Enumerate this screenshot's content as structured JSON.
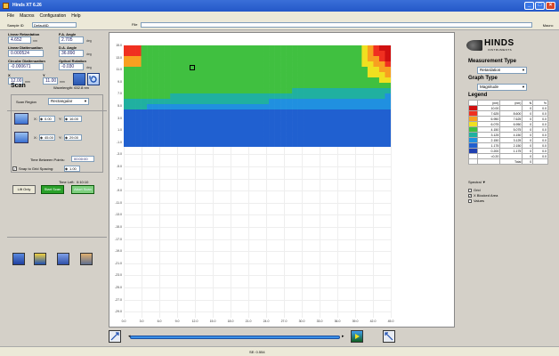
{
  "window": {
    "title": "Hinds XT 6.26"
  },
  "menu": [
    "File",
    "Macros",
    "Configuration",
    "Help"
  ],
  "toolbar": {
    "sample_label": "Sample ID",
    "sample_value": "DefaultID",
    "file_label": "File",
    "macro_label": "Macro: "
  },
  "fields": {
    "linear_retardation": {
      "label": "Linear Retardation",
      "value": "4.652",
      "unit": "nm"
    },
    "fa_angle": {
      "label": "F.A. Angle",
      "value": "2.705",
      "unit": "deg"
    },
    "linear_diattenuation": {
      "label": "Linear Diattenuation",
      "value": "0.000524",
      "unit": ""
    },
    "da_angle": {
      "label": "D.A. Angle",
      "value": "36.890",
      "unit": "deg"
    },
    "circular_diattenuation": {
      "label": "Circular Diattenuation",
      "value": "-0.000671",
      "unit": ""
    },
    "optical_rotation": {
      "label": "Optical Rotation",
      "value": "-0.030",
      "unit": "deg"
    },
    "x": {
      "label": "X",
      "value": "12.00",
      "unit": "mm"
    },
    "y": {
      "label": "Y",
      "value": "11.00",
      "unit": "mm"
    }
  },
  "scan": {
    "title": "Scan",
    "wavelength": "Wavelength: 632.8 nm",
    "region_label": "Scan Region",
    "region_value": "Rectangular",
    "x1_label": "X:",
    "x1": "0.00",
    "y1_label": "Y:",
    "y1": "16.00",
    "x2_label": "X:",
    "x2": "45.00",
    "y2_label": "Y:",
    "y2": "29.00",
    "time_between_label": "Time Between Points:",
    "time_between": "00:00:00",
    "snap_label": "Snap to Grid Spacing:",
    "snap_checked": "✓",
    "grid_spacing": "1.00",
    "time_left_label": "Time Left:",
    "time_left": "0:10:10",
    "lift_button": "Lift Only",
    "start_button": "Start Scan",
    "abort_button": "Abort Scan"
  },
  "plot": {
    "y_ticks": [
      "15.0",
      "13.0",
      "11.0",
      "9.0",
      "7.0",
      "5.0",
      "3.0",
      "1.0",
      "-1.0",
      "-3.0",
      "-5.0",
      "-7.0",
      "-9.0",
      "-11.0",
      "-13.0",
      "-15.0",
      "-17.0",
      "-19.0",
      "-21.0",
      "-23.0",
      "-25.0",
      "-27.0",
      "-29.0"
    ],
    "x_ticks": [
      "0.0",
      "3.0",
      "6.0",
      "9.0",
      "12.0",
      "15.0",
      "18.0",
      "21.0",
      "24.0",
      "27.0",
      "30.0",
      "33.0",
      "36.0",
      "39.0",
      "42.0",
      "45.0"
    ]
  },
  "status": {
    "text": "SE:  0.554"
  },
  "right": {
    "logo_text": "HINDS",
    "logo_sub": "INSTRUMENTS",
    "measurement_type_title": "Measurement Type",
    "measurement_type": "Retardation",
    "graph_type_title": "Graph Type",
    "graph_type": "Magnitude",
    "legend_title": "Legend",
    "legend_headers": [
      "",
      "(nm)",
      "(nm)",
      "N",
      "%"
    ],
    "legend_rows": [
      {
        "color": "#d01010",
        "from": "10.00",
        "to": "",
        "n": "0",
        "pct": "0.0"
      },
      {
        "color": "#f03020",
        "from": "7.625",
        "to": "8.600",
        "n": "0",
        "pct": "0.0"
      },
      {
        "color": "#f8a020",
        "from": "6.950",
        "to": "7.625",
        "n": "0",
        "pct": "0.0"
      },
      {
        "color": "#f0e020",
        "from": "6.075",
        "to": "6.950",
        "n": "0",
        "pct": "0.0"
      },
      {
        "color": "#40c040",
        "from": "4.150",
        "to": "5.075",
        "n": "0",
        "pct": "0.0"
      },
      {
        "color": "#20b0a0",
        "from": "3.125",
        "to": "4.150",
        "n": "0",
        "pct": "0.0"
      },
      {
        "color": "#2090e0",
        "from": "2.150",
        "to": "3.125",
        "n": "0",
        "pct": "0.0"
      },
      {
        "color": "#2060d0",
        "from": "1.175",
        "to": "2.150",
        "n": "0",
        "pct": "0.0"
      },
      {
        "color": "#2040b0",
        "from": "0.200",
        "to": "1.175",
        "n": "0",
        "pct": "0.0"
      },
      {
        "color": "#ffffff",
        "from": "<0.20",
        "to": "",
        "n": "0",
        "pct": "0.0"
      },
      {
        "color": "#ffffff",
        "from": "",
        "to": "Total",
        "n": "0",
        "pct": ""
      }
    ],
    "palette": "Spectral",
    "grid_label": "Grid",
    "blocked_label": "X Blocked Area",
    "blocked_checked": "✓",
    "values_label": "Values"
  }
}
